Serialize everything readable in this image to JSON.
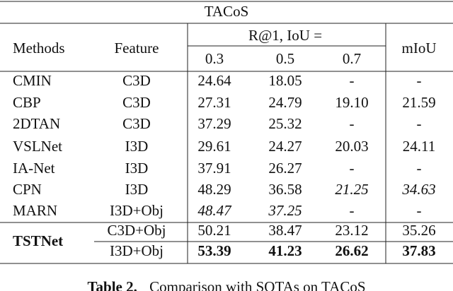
{
  "table": {
    "title": "TACoS",
    "header": {
      "methods": "Methods",
      "feature": "Feature",
      "group": "R@1, IoU =",
      "thresholds": [
        "0.3",
        "0.5",
        "0.7"
      ],
      "miou": "mIoU"
    },
    "rows": [
      [
        "CMIN",
        "C3D",
        "24.64",
        "18.05",
        "-",
        "-"
      ],
      [
        "CBP",
        "C3D",
        "27.31",
        "24.79",
        "19.10",
        "21.59"
      ],
      [
        "2DTAN",
        "C3D",
        "37.29",
        "25.32",
        "-",
        "-"
      ],
      [
        "VSLNet",
        "I3D",
        "29.61",
        "24.27",
        "20.03",
        "24.11"
      ],
      [
        "IA-Net",
        "I3D",
        "37.91",
        "26.27",
        "-",
        "-"
      ],
      [
        "CPN",
        "I3D",
        "48.29",
        "36.58",
        {
          "text": "21.25",
          "style": "italic"
        },
        {
          "text": "34.63",
          "style": "italic"
        }
      ],
      [
        "MARN",
        "I3D+Obj",
        {
          "text": "48.47",
          "style": "italic"
        },
        {
          "text": "37.25",
          "style": "italic"
        },
        "-",
        "-"
      ]
    ],
    "ours": {
      "method": "TSTNet",
      "rows": [
        [
          "C3D+Obj",
          "50.21",
          "38.47",
          "23.12",
          "35.26"
        ],
        [
          "I3D+Obj",
          {
            "text": "53.39",
            "style": "bold"
          },
          {
            "text": "41.23",
            "style": "bold"
          },
          {
            "text": "26.62",
            "style": "bold"
          },
          {
            "text": "37.83",
            "style": "bold"
          }
        ]
      ]
    }
  },
  "caption": {
    "label": "Table 2.",
    "text": "Comparison with SOTAs on TACoS"
  }
}
